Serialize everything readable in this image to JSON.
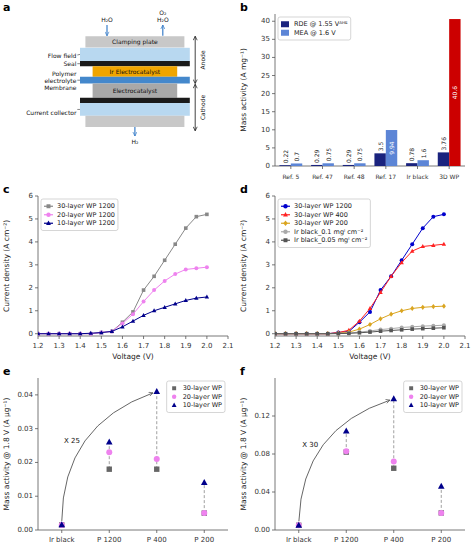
{
  "chart_data": [
    {
      "type": "diagram",
      "title": "a",
      "annotations": [
        "Clamping plate",
        "Ir Electrocatalyst",
        "Electrocatalyst",
        "H₂O",
        "H₂O",
        "O₂",
        "H₂",
        "Flow field",
        "Seal",
        "Polymer\nelectrolyte\nMembrane",
        "Current collector",
        "Anode",
        "Cathode"
      ]
    },
    {
      "type": "bar",
      "title": "b",
      "categories": [
        "Ref. 5",
        "Ref. 47",
        "Ref. 48",
        "Ref. 17",
        "Ir black",
        "3D WP"
      ],
      "series": [
        {
          "name": "RDE @ 1.55 Vᴬᴴᴱ",
          "color": "#1a237e",
          "values": [
            0.22,
            0.29,
            0.29,
            3.5,
            0.78,
            3.76
          ]
        },
        {
          "name": "MEA @ 1.6 V",
          "color": "#5c85d6",
          "colors": [
            "#5c85d6",
            "#5c85d6",
            "#5c85d6",
            "#5c85d6",
            "#5c85d6",
            "#cc0000"
          ],
          "values": [
            0.7,
            0.75,
            0.75,
            9.94,
            1.6,
            40.6
          ]
        }
      ],
      "ylabel": "Mass activity (A mg⁻¹)",
      "ylim": [
        0,
        42
      ],
      "yticks": [
        0,
        5,
        10,
        15,
        20,
        25,
        30,
        35,
        40
      ],
      "legend": "upper left",
      "data_labels": true
    },
    {
      "type": "line",
      "title": "c",
      "x": [
        1.2,
        1.25,
        1.3,
        1.35,
        1.4,
        1.45,
        1.5,
        1.55,
        1.6,
        1.65,
        1.7,
        1.75,
        1.8,
        1.85,
        1.9,
        1.95,
        2.0
      ],
      "series": [
        {
          "name": "30-layer WP 1200",
          "color": "#888888",
          "marker": "square",
          "values": [
            0.0,
            0.0,
            0.0,
            0.0,
            0.0,
            0.0,
            0.05,
            0.1,
            0.5,
            0.95,
            1.9,
            2.5,
            3.2,
            3.9,
            4.6,
            5.1,
            5.2
          ]
        },
        {
          "name": "20-layer WP 1200",
          "color": "#ee82ee",
          "marker": "circle",
          "values": [
            0.0,
            0.0,
            0.0,
            0.0,
            0.0,
            0.0,
            0.05,
            0.1,
            0.45,
            0.85,
            1.4,
            1.9,
            2.3,
            2.6,
            2.8,
            2.85,
            2.9
          ]
        },
        {
          "name": "10-layer WP 1200",
          "color": "#00008b",
          "marker": "triangle",
          "values": [
            0.0,
            0.0,
            0.0,
            0.0,
            0.0,
            0.02,
            0.05,
            0.1,
            0.3,
            0.55,
            0.8,
            1.0,
            1.15,
            1.3,
            1.45,
            1.55,
            1.6
          ]
        }
      ],
      "xlabel": "Voltage (V)",
      "ylabel": "Current density (A cm⁻²)",
      "xlim": [
        1.2,
        2.1
      ],
      "ylim": [
        -0.1,
        6
      ],
      "xticks": [
        1.2,
        1.3,
        1.4,
        1.5,
        1.6,
        1.7,
        1.8,
        1.9,
        {
          "value": 2.0,
          "label": "2.0"
        },
        2.1
      ],
      "yticks": [
        0,
        1,
        2,
        3,
        4,
        5,
        6
      ],
      "legend": "upper left"
    },
    {
      "type": "line",
      "title": "d",
      "x": [
        1.2,
        1.25,
        1.3,
        1.35,
        1.4,
        1.45,
        1.5,
        1.55,
        1.6,
        1.65,
        1.7,
        1.75,
        1.8,
        1.85,
        1.9,
        1.95,
        2.0
      ],
      "series": [
        {
          "name": "30-layer WP 1200",
          "color": "#0000cd",
          "marker": "circle",
          "values": [
            0.0,
            0.0,
            0.0,
            0.0,
            0.0,
            0.0,
            0.05,
            0.1,
            0.5,
            0.95,
            1.9,
            2.5,
            3.2,
            3.9,
            4.6,
            5.1,
            5.2
          ]
        },
        {
          "name": "30-layer WP 400",
          "color": "#ff2222",
          "marker": "triangle",
          "values": [
            0.0,
            0.0,
            0.0,
            0.0,
            0.0,
            0.0,
            0.05,
            0.15,
            0.55,
            1.1,
            1.8,
            2.5,
            3.1,
            3.6,
            3.8,
            3.85,
            3.9
          ]
        },
        {
          "name": "30-layer WP 200",
          "color": "#daa520",
          "marker": "diamond",
          "values": [
            0.0,
            0.0,
            0.0,
            0.0,
            0.0,
            0.0,
            0.02,
            0.07,
            0.2,
            0.4,
            0.65,
            0.85,
            1.0,
            1.1,
            1.15,
            1.18,
            1.2
          ]
        },
        {
          "name": "Ir black_0.1 mgᴵ cm⁻²",
          "color": "#aaaaaa",
          "marker": "circle",
          "values": [
            0.0,
            0.0,
            0.0,
            0.0,
            0.0,
            0.0,
            0.01,
            0.03,
            0.07,
            0.12,
            0.18,
            0.22,
            0.27,
            0.3,
            0.33,
            0.35,
            0.37
          ]
        },
        {
          "name": "Ir black_0.05 mgᴵ cm⁻²",
          "color": "#555555",
          "marker": "square",
          "values": [
            0.0,
            0.0,
            0.0,
            0.0,
            0.0,
            0.0,
            0.005,
            0.015,
            0.04,
            0.07,
            0.11,
            0.14,
            0.17,
            0.2,
            0.22,
            0.24,
            0.26
          ]
        }
      ],
      "xlabel": "Voltage (V)",
      "ylabel": "Current density (A cm⁻²)",
      "xlim": [
        1.2,
        2.1
      ],
      "ylim": [
        -0.1,
        6
      ],
      "xticks": [
        1.2,
        1.3,
        1.4,
        1.5,
        1.6,
        1.7,
        1.8,
        1.9,
        {
          "value": 2.0,
          "label": "2.0"
        },
        2.1
      ],
      "yticks": [
        0,
        1,
        2,
        3,
        4,
        5,
        6
      ],
      "legend": "upper left"
    },
    {
      "type": "scatter",
      "title": "e",
      "categories": [
        "Ir black",
        "P 1200",
        "P 400",
        "P 200"
      ],
      "series": [
        {
          "name": "30-layer WP",
          "color": "#666666",
          "marker": "square",
          "values": [
            0.0015,
            0.018,
            0.018,
            0.005
          ]
        },
        {
          "name": "20-layer WP",
          "color": "#ee82ee",
          "marker": "circle",
          "values": [
            0.0015,
            0.023,
            0.021,
            0.005
          ]
        },
        {
          "name": "10-layer WP",
          "color": "#00008b",
          "marker": "triangle",
          "values": [
            0.0015,
            0.026,
            0.041,
            0.014
          ]
        }
      ],
      "ylabel": "Mass activity @ 1.8 V (A μg⁻¹)",
      "ylim": [
        0,
        0.045
      ],
      "yticks": [
        {
          "value": 0,
          "label": "0.00"
        },
        0.01,
        0.02,
        0.03,
        0.04
      ],
      "legend": "upper right",
      "annotations": [
        {
          "text": "X 25",
          "from": "Ir black",
          "to": "P 400"
        }
      ]
    },
    {
      "type": "scatter",
      "title": "f",
      "categories": [
        "Ir black",
        "P 1200",
        "P 400",
        "P 200"
      ],
      "series": [
        {
          "name": "30-layer WP",
          "color": "#666666",
          "marker": "square",
          "values": [
            0.005,
            0.082,
            0.065,
            0.018
          ]
        },
        {
          "name": "20-layer WP",
          "color": "#ee82ee",
          "marker": "circle",
          "values": [
            0.005,
            0.083,
            0.072,
            0.018
          ]
        },
        {
          "name": "10-layer WP",
          "color": "#00008b",
          "marker": "triangle",
          "values": [
            0.005,
            0.104,
            0.138,
            0.046
          ]
        }
      ],
      "ylabel": "Mass activity @ 1.8 V (A μg⁻¹)",
      "ylim": [
        0,
        0.16
      ],
      "yticks": [
        {
          "value": 0,
          "label": "0.00"
        },
        0.04,
        0.08,
        0.12
      ],
      "legend": "upper right",
      "annotations": [
        {
          "text": "X 30",
          "from": "Ir black",
          "to": "P 400"
        }
      ]
    }
  ]
}
